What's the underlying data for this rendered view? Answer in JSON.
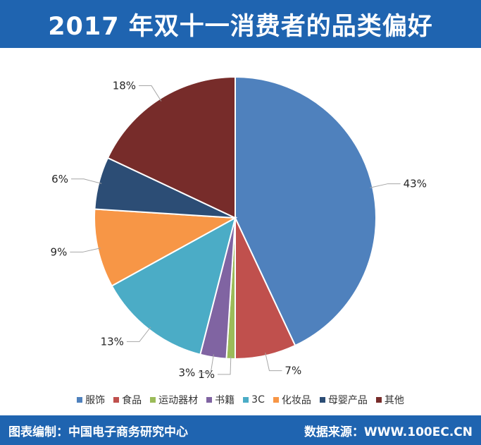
{
  "header": {
    "title": "2017 年双十一消费者的品类偏好"
  },
  "chart_data": {
    "type": "pie",
    "title": "2017 年双十一消费者的品类偏好",
    "start_angle": "top, clockwise",
    "legend_position": "bottom",
    "slices": [
      {
        "name": "服饰",
        "value": 43,
        "label": "43%",
        "color": "#4f81bd"
      },
      {
        "name": "食品",
        "value": 7,
        "label": "7%",
        "color": "#c0504d"
      },
      {
        "name": "运动器材",
        "value": 1,
        "label": "1%",
        "color": "#9bbb59"
      },
      {
        "name": "书籍",
        "value": 3,
        "label": "3%",
        "color": "#8064a2"
      },
      {
        "name": "3C",
        "value": 13,
        "label": "13%",
        "color": "#4bacc6"
      },
      {
        "name": "化妆品",
        "value": 9,
        "label": "9%",
        "color": "#f79646"
      },
      {
        "name": "母婴产品",
        "value": 6,
        "label": "6%",
        "color": "#2c4d75"
      },
      {
        "name": "其他",
        "value": 18,
        "label": "18%",
        "color": "#772c2a"
      }
    ]
  },
  "footer": {
    "left": "图表编制：中国电子商务研究中心",
    "right": "数据来源：WWW.100EC.CN"
  }
}
